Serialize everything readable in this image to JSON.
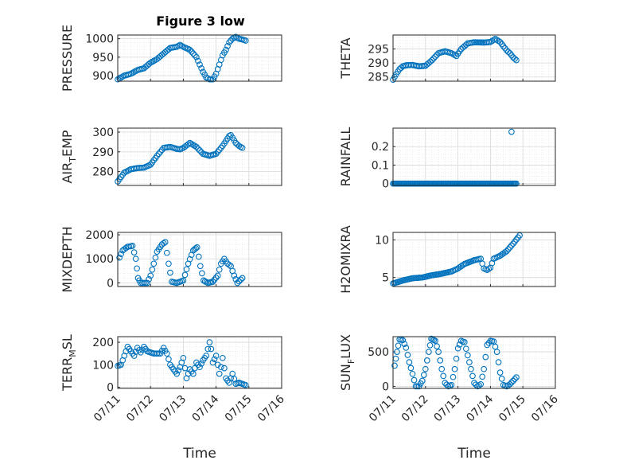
{
  "figure_title": "Figure 3 low",
  "colors": {
    "marker": "#0072BD",
    "axes": "#262626",
    "grid": "#d9d9d9",
    "minor_grid": "#e6e6e6"
  },
  "x_tick_labels": [
    "07/11",
    "07/12",
    "07/13",
    "07/14",
    "07/15",
    "07/16"
  ],
  "chart_data": [
    {
      "type": "scatter",
      "id": "pressure",
      "ylabel": "PRESSURE",
      "ylabel_sub": "",
      "ylabel_tail": "",
      "xlabel": "",
      "show_xticks": false,
      "xlim": [
        0,
        5
      ],
      "ylim": [
        885,
        1010
      ],
      "yticks": [
        900,
        950,
        1000
      ],
      "yticklabels": [
        "900",
        "950",
        "1000"
      ],
      "anchors": [
        [
          0,
          890
        ],
        [
          0.2,
          900
        ],
        [
          0.4,
          905
        ],
        [
          0.6,
          915
        ],
        [
          0.8,
          920
        ],
        [
          1.0,
          935
        ],
        [
          1.2,
          945
        ],
        [
          1.4,
          960
        ],
        [
          1.6,
          975
        ],
        [
          1.8,
          978
        ],
        [
          1.9,
          983
        ],
        [
          2.0,
          978
        ],
        [
          2.2,
          970
        ],
        [
          2.4,
          950
        ],
        [
          2.6,
          910
        ],
        [
          2.7,
          895
        ],
        [
          2.8,
          890
        ],
        [
          2.9,
          890
        ],
        [
          3.0,
          905
        ],
        [
          3.1,
          930
        ],
        [
          3.2,
          955
        ],
        [
          3.3,
          970
        ],
        [
          3.4,
          990
        ],
        [
          3.5,
          1000
        ],
        [
          3.6,
          1005
        ],
        [
          3.7,
          1000
        ],
        [
          3.8,
          998
        ],
        [
          3.9,
          995
        ]
      ]
    },
    {
      "type": "scatter",
      "id": "theta",
      "ylabel": "THETA",
      "ylabel_sub": "",
      "ylabel_tail": "",
      "xlabel": "",
      "show_xticks": false,
      "xlim": [
        0,
        5
      ],
      "ylim": [
        283.5,
        300
      ],
      "yticks": [
        285,
        290,
        295
      ],
      "yticklabels": [
        "285",
        "290",
        "295"
      ],
      "anchors": [
        [
          0,
          284
        ],
        [
          0.1,
          286
        ],
        [
          0.2,
          287.8
        ],
        [
          0.3,
          288.8
        ],
        [
          0.4,
          289.2
        ],
        [
          0.6,
          289.3
        ],
        [
          0.8,
          288.8
        ],
        [
          1.0,
          289
        ],
        [
          1.2,
          291
        ],
        [
          1.4,
          293.5
        ],
        [
          1.6,
          294.2
        ],
        [
          1.8,
          293.5
        ],
        [
          1.95,
          292.5
        ],
        [
          2.1,
          295
        ],
        [
          2.3,
          297
        ],
        [
          2.5,
          297.4
        ],
        [
          2.8,
          297.3
        ],
        [
          3.0,
          297.5
        ],
        [
          3.15,
          298.6
        ],
        [
          3.3,
          297.5
        ],
        [
          3.5,
          294.5
        ],
        [
          3.6,
          293.5
        ],
        [
          3.7,
          292
        ],
        [
          3.8,
          291
        ]
      ]
    },
    {
      "type": "scatter",
      "id": "air_temp",
      "ylabel": "AIR",
      "ylabel_sub": "T",
      "ylabel_tail": "EMP",
      "xlabel": "",
      "show_xticks": false,
      "xlim": [
        0,
        5
      ],
      "ylim": [
        273,
        302
      ],
      "yticks": [
        280,
        290,
        300
      ],
      "yticklabels": [
        "280",
        "290",
        "300"
      ],
      "anchors": [
        [
          0,
          275
        ],
        [
          0.2,
          279.5
        ],
        [
          0.4,
          281.2
        ],
        [
          0.6,
          281.8
        ],
        [
          0.8,
          282
        ],
        [
          1.0,
          283.5
        ],
        [
          1.2,
          288
        ],
        [
          1.4,
          292
        ],
        [
          1.6,
          292.5
        ],
        [
          1.8,
          291.5
        ],
        [
          1.9,
          291.3
        ],
        [
          2.0,
          292
        ],
        [
          2.2,
          294.5
        ],
        [
          2.4,
          292.5
        ],
        [
          2.6,
          289
        ],
        [
          2.8,
          288
        ],
        [
          3.0,
          289
        ],
        [
          3.2,
          293
        ],
        [
          3.4,
          298
        ],
        [
          3.45,
          298.5
        ],
        [
          3.6,
          294.5
        ],
        [
          3.7,
          293
        ],
        [
          3.8,
          292
        ]
      ]
    },
    {
      "type": "scatter",
      "id": "rainfall",
      "ylabel": "RAINFALL",
      "ylabel_sub": "",
      "ylabel_tail": "",
      "xlabel": "",
      "show_xticks": false,
      "xlim": [
        0,
        5
      ],
      "ylim": [
        -0.01,
        0.3
      ],
      "yticks": [
        0,
        0.1,
        0.2
      ],
      "yticklabels": [
        "0",
        "0.1",
        "0.2"
      ],
      "anchors": [
        [
          0,
          0
        ],
        [
          3.8,
          0
        ]
      ],
      "extra_points": [
        [
          3.65,
          0.28
        ]
      ]
    },
    {
      "type": "scatter",
      "id": "mixdepth",
      "ylabel": "MIXDEPTH",
      "ylabel_sub": "",
      "ylabel_tail": "",
      "xlabel": "",
      "show_xticks": false,
      "xlim": [
        0,
        5
      ],
      "ylim": [
        -150,
        2100
      ],
      "yticks": [
        0,
        1000,
        2000
      ],
      "yticklabels": [
        "0",
        "1000",
        "2000"
      ],
      "anchors": [
        [
          0.05,
          1050
        ],
        [
          0.15,
          1350
        ],
        [
          0.3,
          1500
        ],
        [
          0.45,
          1540
        ],
        [
          0.55,
          1000
        ],
        [
          0.62,
          200
        ],
        [
          0.7,
          0
        ],
        [
          0.9,
          0
        ],
        [
          1.0,
          300
        ],
        [
          1.1,
          800
        ],
        [
          1.2,
          1300
        ],
        [
          1.35,
          1600
        ],
        [
          1.45,
          1700
        ],
        [
          1.55,
          800
        ],
        [
          1.65,
          50
        ],
        [
          1.8,
          0
        ],
        [
          2.0,
          100
        ],
        [
          2.15,
          800
        ],
        [
          2.3,
          1350
        ],
        [
          2.42,
          1480
        ],
        [
          2.52,
          700
        ],
        [
          2.62,
          100
        ],
        [
          2.75,
          0
        ],
        [
          2.9,
          50
        ],
        [
          3.05,
          300
        ],
        [
          3.15,
          800
        ],
        [
          3.25,
          1000
        ],
        [
          3.35,
          800
        ],
        [
          3.45,
          700
        ],
        [
          3.55,
          300
        ],
        [
          3.65,
          0
        ],
        [
          3.8,
          200
        ]
      ]
    },
    {
      "type": "scatter",
      "id": "h2omixra",
      "ylabel": "H2OMIXRA",
      "ylabel_sub": "",
      "ylabel_tail": "",
      "xlabel": "",
      "show_xticks": false,
      "xlim": [
        0,
        5
      ],
      "ylim": [
        3.8,
        11
      ],
      "yticks": [
        5,
        10
      ],
      "yticklabels": [
        "5",
        "10"
      ],
      "anchors": [
        [
          0,
          4.2
        ],
        [
          0.3,
          4.6
        ],
        [
          0.6,
          4.9
        ],
        [
          0.9,
          5.0
        ],
        [
          1.2,
          5.3
        ],
        [
          1.5,
          5.5
        ],
        [
          1.8,
          5.8
        ],
        [
          2.0,
          6.2
        ],
        [
          2.2,
          6.8
        ],
        [
          2.5,
          7.3
        ],
        [
          2.7,
          7.5
        ],
        [
          2.8,
          6.2
        ],
        [
          2.9,
          6.0
        ],
        [
          3.0,
          6.3
        ],
        [
          3.1,
          7.5
        ],
        [
          3.3,
          7.9
        ],
        [
          3.5,
          8.5
        ],
        [
          3.7,
          9.5
        ],
        [
          3.9,
          10.6
        ]
      ]
    },
    {
      "type": "scatter",
      "id": "terr_msl",
      "ylabel": "TERR",
      "ylabel_sub": "M",
      "ylabel_tail": "SL",
      "xlabel": "Time",
      "show_xticks": true,
      "xlim": [
        0,
        5
      ],
      "ylim": [
        -5,
        225
      ],
      "yticks": [
        0,
        100,
        200
      ],
      "yticklabels": [
        "0",
        "100",
        "200"
      ],
      "anchors": [
        [
          0,
          95
        ],
        [
          0.1,
          100
        ],
        [
          0.2,
          140
        ],
        [
          0.3,
          180
        ],
        [
          0.4,
          160
        ],
        [
          0.5,
          140
        ],
        [
          0.6,
          175
        ],
        [
          0.7,
          155
        ],
        [
          0.8,
          180
        ],
        [
          0.9,
          160
        ],
        [
          1.0,
          155
        ],
        [
          1.1,
          150
        ],
        [
          1.3,
          150
        ],
        [
          1.4,
          175
        ],
        [
          1.5,
          150
        ],
        [
          1.6,
          100
        ],
        [
          1.7,
          80
        ],
        [
          1.8,
          60
        ],
        [
          1.9,
          90
        ],
        [
          2.0,
          130
        ],
        [
          2.1,
          40
        ],
        [
          2.2,
          80
        ],
        [
          2.3,
          60
        ],
        [
          2.4,
          110
        ],
        [
          2.5,
          90
        ],
        [
          2.6,
          120
        ],
        [
          2.7,
          140
        ],
        [
          2.8,
          200
        ],
        [
          2.85,
          170
        ],
        [
          2.9,
          110
        ],
        [
          3.0,
          140
        ],
        [
          3.1,
          60
        ],
        [
          3.15,
          90
        ],
        [
          3.2,
          130
        ],
        [
          3.3,
          40
        ],
        [
          3.4,
          20
        ],
        [
          3.5,
          60
        ],
        [
          3.6,
          15
        ],
        [
          3.7,
          20
        ],
        [
          3.8,
          15
        ],
        [
          3.9,
          10
        ]
      ]
    },
    {
      "type": "scatter",
      "id": "sun_flux",
      "ylabel": "SUN",
      "ylabel_sub": "F",
      "ylabel_tail": "LUX",
      "xlabel": "Time",
      "show_xticks": true,
      "xlim": [
        0,
        5
      ],
      "ylim": [
        -30,
        720
      ],
      "yticks": [
        0,
        500
      ],
      "yticklabels": [
        "0",
        "500"
      ],
      "anchors": [
        [
          0.05,
          300
        ],
        [
          0.12,
          500
        ],
        [
          0.2,
          680
        ],
        [
          0.3,
          670
        ],
        [
          0.4,
          560
        ],
        [
          0.5,
          350
        ],
        [
          0.6,
          180
        ],
        [
          0.7,
          0
        ],
        [
          0.8,
          0
        ],
        [
          0.9,
          80
        ],
        [
          1.0,
          250
        ],
        [
          1.1,
          500
        ],
        [
          1.18,
          690
        ],
        [
          1.3,
          660
        ],
        [
          1.4,
          500
        ],
        [
          1.5,
          250
        ],
        [
          1.6,
          50
        ],
        [
          1.7,
          0
        ],
        [
          1.8,
          20
        ],
        [
          1.9,
          250
        ],
        [
          2.0,
          550
        ],
        [
          2.1,
          660
        ],
        [
          2.2,
          640
        ],
        [
          2.3,
          450
        ],
        [
          2.4,
          250
        ],
        [
          2.5,
          50
        ],
        [
          2.6,
          0
        ],
        [
          2.7,
          30
        ],
        [
          2.8,
          250
        ],
        [
          2.9,
          600
        ],
        [
          3.0,
          660
        ],
        [
          3.1,
          650
        ],
        [
          3.2,
          500
        ],
        [
          3.3,
          200
        ],
        [
          3.4,
          20
        ],
        [
          3.5,
          0
        ],
        [
          3.6,
          30
        ],
        [
          3.7,
          80
        ],
        [
          3.8,
          130
        ]
      ]
    }
  ]
}
